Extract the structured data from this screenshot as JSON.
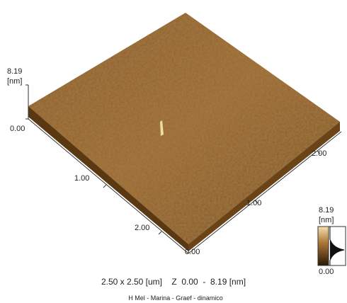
{
  "z_axis": {
    "max": "8.19",
    "unit": "[nm]",
    "min": "0.00"
  },
  "front_axis": {
    "start": "0.00",
    "mid": "1.00",
    "end": "2.00"
  },
  "right_axis": {
    "mid": "1.00",
    "end": "2.00"
  },
  "colorbar": {
    "max": "8.19",
    "unit": "[nm]",
    "min": "0.00"
  },
  "caption": "2.50 x 2.50 [um]    Z  0.00  -  8.19 [nm]",
  "footer": "H Mel - Marina - Graef - dinamico"
}
